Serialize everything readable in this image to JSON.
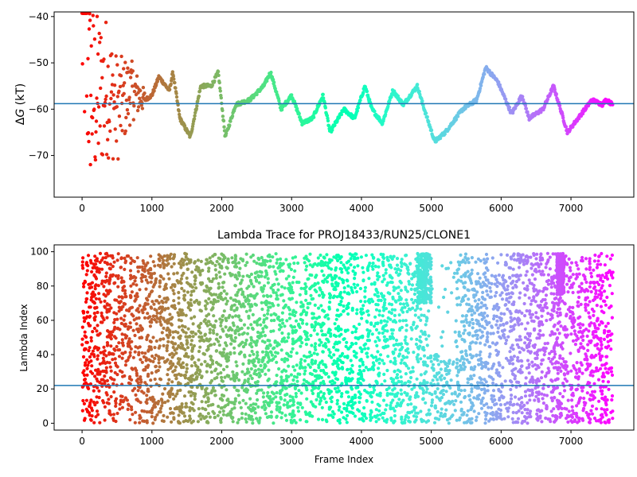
{
  "chart_data": [
    {
      "type": "scatter",
      "title": "",
      "xlabel": "",
      "ylabel_prefix": "Δ",
      "ylabel_var": "G",
      "ylabel_suffix": " (kT)",
      "xlim": [
        -400,
        7900
      ],
      "ylim": [
        -79,
        -39
      ],
      "xticks": [
        0,
        1000,
        2000,
        3000,
        4000,
        5000,
        6000,
        7000
      ],
      "yticks": [
        -40,
        -50,
        -60,
        -70
      ],
      "reference_line": -58.8,
      "reference_color": "#1f77b4",
      "colormap": "rainbow",
      "trace_keypoints": [
        {
          "x": 0,
          "y": -40
        },
        {
          "x": 100,
          "y": -55
        },
        {
          "x": 200,
          "y": -58
        },
        {
          "x": 350,
          "y": -55
        },
        {
          "x": 500,
          "y": -60
        },
        {
          "x": 700,
          "y": -56
        },
        {
          "x": 900,
          "y": -58
        },
        {
          "x": 1000,
          "y": -57
        },
        {
          "x": 1100,
          "y": -53
        },
        {
          "x": 1250,
          "y": -56
        },
        {
          "x": 1300,
          "y": -52
        },
        {
          "x": 1400,
          "y": -62
        },
        {
          "x": 1550,
          "y": -66
        },
        {
          "x": 1700,
          "y": -55
        },
        {
          "x": 1850,
          "y": -55
        },
        {
          "x": 1950,
          "y": -52
        },
        {
          "x": 2050,
          "y": -66
        },
        {
          "x": 2200,
          "y": -59
        },
        {
          "x": 2400,
          "y": -58
        },
        {
          "x": 2600,
          "y": -55
        },
        {
          "x": 2700,
          "y": -52
        },
        {
          "x": 2850,
          "y": -60
        },
        {
          "x": 3000,
          "y": -57
        },
        {
          "x": 3150,
          "y": -63
        },
        {
          "x": 3300,
          "y": -62
        },
        {
          "x": 3450,
          "y": -57
        },
        {
          "x": 3550,
          "y": -65
        },
        {
          "x": 3750,
          "y": -60
        },
        {
          "x": 3900,
          "y": -62
        },
        {
          "x": 4050,
          "y": -55
        },
        {
          "x": 4150,
          "y": -60
        },
        {
          "x": 4300,
          "y": -63
        },
        {
          "x": 4450,
          "y": -56
        },
        {
          "x": 4600,
          "y": -59
        },
        {
          "x": 4800,
          "y": -55
        },
        {
          "x": 4900,
          "y": -60
        },
        {
          "x": 5050,
          "y": -67
        },
        {
          "x": 5200,
          "y": -65
        },
        {
          "x": 5450,
          "y": -60
        },
        {
          "x": 5650,
          "y": -58
        },
        {
          "x": 5780,
          "y": -51
        },
        {
          "x": 5950,
          "y": -54
        },
        {
          "x": 6150,
          "y": -61
        },
        {
          "x": 6300,
          "y": -57
        },
        {
          "x": 6400,
          "y": -62
        },
        {
          "x": 6600,
          "y": -60
        },
        {
          "x": 6750,
          "y": -55
        },
        {
          "x": 6850,
          "y": -60
        },
        {
          "x": 6950,
          "y": -65
        },
        {
          "x": 7150,
          "y": -61
        },
        {
          "x": 7300,
          "y": -58
        },
        {
          "x": 7450,
          "y": -59
        },
        {
          "x": 7500,
          "y": -58
        },
        {
          "x": 7600,
          "y": -59
        }
      ]
    },
    {
      "type": "scatter",
      "title": "Lambda Trace for PROJ18433/RUN25/CLONE1",
      "xlabel": "Frame Index",
      "ylabel": "Lambda Index",
      "xlim": [
        -400,
        7900
      ],
      "ylim": [
        -4,
        104
      ],
      "xticks": [
        0,
        1000,
        2000,
        3000,
        4000,
        5000,
        6000,
        7000
      ],
      "yticks": [
        0,
        20,
        40,
        60,
        80,
        100
      ],
      "reference_line": 22,
      "reference_color": "#1f77b4",
      "colormap": "rainbow",
      "frame_range": [
        0,
        7600
      ],
      "lambda_range": [
        0,
        99
      ],
      "dense_regions": [
        {
          "x": [
            4800,
            5000
          ],
          "y": [
            70,
            99
          ]
        },
        {
          "x": [
            6800,
            6900
          ],
          "y": [
            75,
            99
          ]
        }
      ],
      "sparse_gap": {
        "x": [
          4950,
          5350
        ],
        "y": [
          40,
          99
        ]
      }
    }
  ]
}
